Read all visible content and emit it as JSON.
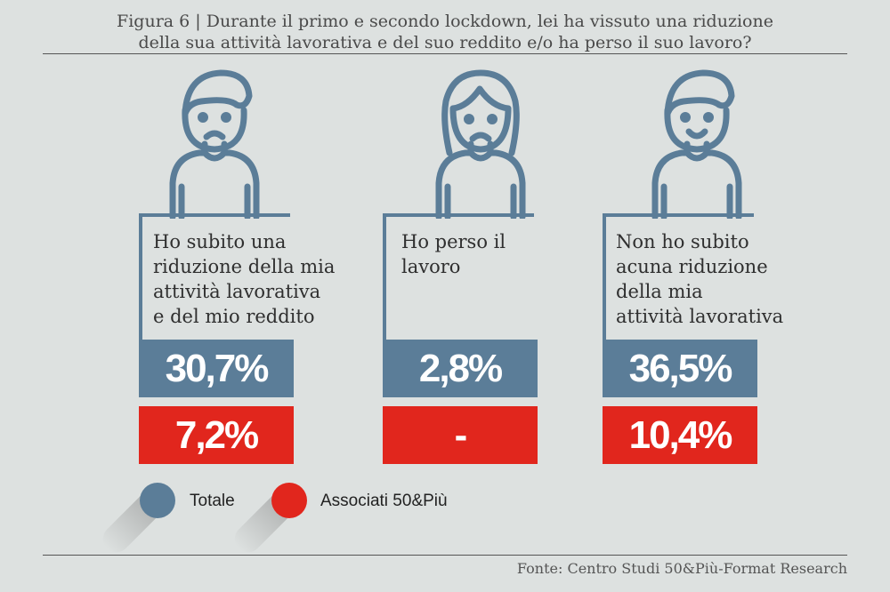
{
  "title": "Figura 6 | Durante il primo e secondo lockdown, lei ha vissuto una riduzione della sua attività lavorativa e del suo reddito e/o ha perso il suo lavoro?",
  "title_line1": "Figura 6 | Durante il primo e secondo lockdown, lei ha vissuto una riduzione",
  "title_line2": "della sua attività lavorativa e del suo reddito e/o ha perso il suo lavoro?",
  "source": "Fonte: Centro Studi 50&Più-Format Research",
  "colors": {
    "totale": "#5b7d98",
    "associati": "#e1261d",
    "background": "#dde1e0"
  },
  "icons": [
    "sad-man-icon",
    "sad-woman-icon",
    "smiling-man-icon"
  ],
  "chart_data": {
    "type": "bar",
    "title": "Figura 6 | Durante il primo e secondo lockdown, lei ha vissuto una riduzione della sua attività lavorativa e del suo reddito e/o ha perso il suo lavoro?",
    "categories": [
      "Ho subito una riduzione della mia attività lavorativa e del mio reddito",
      "Ho perso il lavoro",
      "Non ho subito acuna riduzione della mia attività lavorativa"
    ],
    "category_lines": [
      [
        "Ho subito una",
        "riduzione della mia",
        "attività lavorativa",
        "e del mio reddito"
      ],
      [
        "Ho perso il",
        "lavoro"
      ],
      [
        "Non ho subito",
        "acuna riduzione",
        "della mia",
        "attività lavorativa"
      ]
    ],
    "series": [
      {
        "name": "Totale",
        "values": [
          30.7,
          2.8,
          36.5
        ],
        "labels": [
          "30,7%",
          "2,8%",
          "36,5%"
        ]
      },
      {
        "name": "Associati 50&Più",
        "values": [
          7.2,
          null,
          10.4
        ],
        "labels": [
          "7,2%",
          "-",
          "10,4%"
        ]
      }
    ],
    "legend": "bottom-left"
  }
}
